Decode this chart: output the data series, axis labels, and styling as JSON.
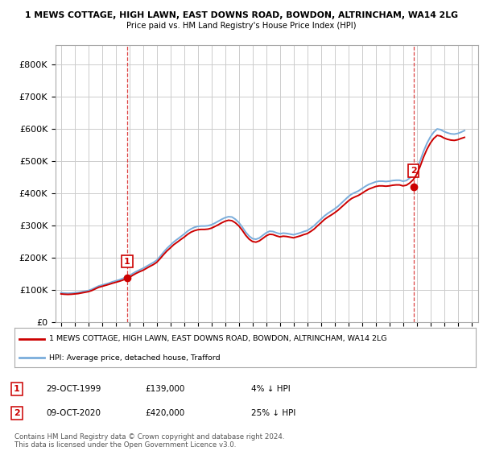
{
  "title1": "1 MEWS COTTAGE, HIGH LAWN, EAST DOWNS ROAD, BOWDON, ALTRINCHAM, WA14 2LG",
  "title2": "Price paid vs. HM Land Registry's House Price Index (HPI)",
  "yticks": [
    0,
    100000,
    200000,
    300000,
    400000,
    500000,
    600000,
    700000,
    800000
  ],
  "ytick_labels": [
    "£0",
    "£100K",
    "£200K",
    "£300K",
    "£400K",
    "£500K",
    "£600K",
    "£700K",
    "£800K"
  ],
  "ylim": [
    0,
    860000
  ],
  "xlim_left": 1994.6,
  "xlim_right": 2025.5,
  "sale1_date": 1999.83,
  "sale1_price": 139000,
  "sale2_date": 2020.77,
  "sale2_price": 420000,
  "legend_entry1": "1 MEWS COTTAGE, HIGH LAWN, EAST DOWNS ROAD, BOWDON, ALTRINCHAM, WA14 2LG",
  "legend_entry2": "HPI: Average price, detached house, Trafford",
  "footnote": "Contains HM Land Registry data © Crown copyright and database right 2024.\nThis data is licensed under the Open Government Licence v3.0.",
  "color_red": "#cc0000",
  "color_blue": "#7aaddb",
  "background": "#ffffff",
  "grid_color": "#cccccc",
  "hpi_data": {
    "dates": [
      1995.0,
      1995.25,
      1995.5,
      1995.75,
      1996.0,
      1996.25,
      1996.5,
      1996.75,
      1997.0,
      1997.25,
      1997.5,
      1997.75,
      1998.0,
      1998.25,
      1998.5,
      1998.75,
      1999.0,
      1999.25,
      1999.5,
      1999.75,
      2000.0,
      2000.25,
      2000.5,
      2000.75,
      2001.0,
      2001.25,
      2001.5,
      2001.75,
      2002.0,
      2002.25,
      2002.5,
      2002.75,
      2003.0,
      2003.25,
      2003.5,
      2003.75,
      2004.0,
      2004.25,
      2004.5,
      2004.75,
      2005.0,
      2005.25,
      2005.5,
      2005.75,
      2006.0,
      2006.25,
      2006.5,
      2006.75,
      2007.0,
      2007.25,
      2007.5,
      2007.75,
      2008.0,
      2008.25,
      2008.5,
      2008.75,
      2009.0,
      2009.25,
      2009.5,
      2009.75,
      2010.0,
      2010.25,
      2010.5,
      2010.75,
      2011.0,
      2011.25,
      2011.5,
      2011.75,
      2012.0,
      2012.25,
      2012.5,
      2012.75,
      2013.0,
      2013.25,
      2013.5,
      2013.75,
      2014.0,
      2014.25,
      2014.5,
      2014.75,
      2015.0,
      2015.25,
      2015.5,
      2015.75,
      2016.0,
      2016.25,
      2016.5,
      2016.75,
      2017.0,
      2017.25,
      2017.5,
      2017.75,
      2018.0,
      2018.25,
      2018.5,
      2018.75,
      2019.0,
      2019.25,
      2019.5,
      2019.75,
      2020.0,
      2020.25,
      2020.5,
      2020.75,
      2021.0,
      2021.25,
      2021.5,
      2021.75,
      2022.0,
      2022.25,
      2022.5,
      2022.75,
      2023.0,
      2023.25,
      2023.5,
      2023.75,
      2024.0,
      2024.25,
      2024.5
    ],
    "values": [
      92000,
      91000,
      90500,
      91000,
      92000,
      93000,
      95000,
      97000,
      99000,
      103000,
      108000,
      113000,
      116000,
      119000,
      122000,
      126000,
      129000,
      132000,
      136000,
      140000,
      145000,
      152000,
      158000,
      163000,
      168000,
      174000,
      180000,
      186000,
      193000,
      205000,
      218000,
      230000,
      240000,
      250000,
      258000,
      266000,
      274000,
      283000,
      290000,
      295000,
      298000,
      299000,
      299000,
      300000,
      303000,
      308000,
      314000,
      320000,
      325000,
      328000,
      327000,
      320000,
      310000,
      296000,
      280000,
      268000,
      260000,
      258000,
      262000,
      270000,
      278000,
      283000,
      282000,
      278000,
      275000,
      277000,
      276000,
      274000,
      272000,
      275000,
      278000,
      282000,
      285000,
      292000,
      300000,
      310000,
      320000,
      330000,
      338000,
      345000,
      352000,
      360000,
      370000,
      380000,
      390000,
      398000,
      403000,
      408000,
      415000,
      422000,
      428000,
      432000,
      436000,
      438000,
      438000,
      437000,
      438000,
      440000,
      441000,
      441000,
      438000,
      440000,
      448000,
      458000,
      475000,
      500000,
      530000,
      555000,
      575000,
      590000,
      600000,
      598000,
      592000,
      588000,
      585000,
      584000,
      586000,
      590000,
      595000
    ]
  },
  "price_paid_data": {
    "dates": [
      1995.0,
      1995.25,
      1995.5,
      1995.75,
      1996.0,
      1996.25,
      1996.5,
      1996.75,
      1997.0,
      1997.25,
      1997.5,
      1997.75,
      1998.0,
      1998.25,
      1998.5,
      1998.75,
      1999.0,
      1999.25,
      1999.5,
      1999.75,
      2000.0,
      2000.25,
      2000.5,
      2000.75,
      2001.0,
      2001.25,
      2001.5,
      2001.75,
      2002.0,
      2002.25,
      2002.5,
      2002.75,
      2003.0,
      2003.25,
      2003.5,
      2003.75,
      2004.0,
      2004.25,
      2004.5,
      2004.75,
      2005.0,
      2005.25,
      2005.5,
      2005.75,
      2006.0,
      2006.25,
      2006.5,
      2006.75,
      2007.0,
      2007.25,
      2007.5,
      2007.75,
      2008.0,
      2008.25,
      2008.5,
      2008.75,
      2009.0,
      2009.25,
      2009.5,
      2009.75,
      2010.0,
      2010.25,
      2010.5,
      2010.75,
      2011.0,
      2011.25,
      2011.5,
      2011.75,
      2012.0,
      2012.25,
      2012.5,
      2012.75,
      2013.0,
      2013.25,
      2013.5,
      2013.75,
      2014.0,
      2014.25,
      2014.5,
      2014.75,
      2015.0,
      2015.25,
      2015.5,
      2015.75,
      2016.0,
      2016.25,
      2016.5,
      2016.75,
      2017.0,
      2017.25,
      2017.5,
      2017.75,
      2018.0,
      2018.25,
      2018.5,
      2018.75,
      2019.0,
      2019.25,
      2019.5,
      2019.75,
      2020.0,
      2020.25,
      2020.5,
      2020.75,
      2021.0,
      2021.25,
      2021.5,
      2021.75,
      2022.0,
      2022.25,
      2022.5,
      2022.75,
      2023.0,
      2023.25,
      2023.5,
      2023.75,
      2024.0,
      2024.25,
      2024.5
    ],
    "values": [
      88500,
      87500,
      87000,
      87500,
      88500,
      89500,
      91500,
      93500,
      95500,
      99000,
      104000,
      109000,
      112000,
      115000,
      118000,
      121500,
      124500,
      127500,
      131000,
      135000,
      139800,
      146500,
      152500,
      157500,
      162000,
      168000,
      174000,
      179500,
      186500,
      198000,
      210500,
      222000,
      231500,
      241500,
      249000,
      257000,
      264500,
      273000,
      280000,
      284500,
      287500,
      288500,
      288500,
      289500,
      292500,
      297500,
      303000,
      309000,
      314000,
      317000,
      315500,
      309000,
      299500,
      286000,
      270500,
      258500,
      251000,
      249000,
      253000,
      260500,
      268500,
      273500,
      272500,
      268500,
      265500,
      267500,
      266500,
      264500,
      262500,
      265500,
      268500,
      272500,
      275500,
      282000,
      289500,
      299500,
      309000,
      319000,
      326500,
      333000,
      340000,
      348000,
      357500,
      367000,
      376500,
      384500,
      389500,
      394000,
      400500,
      407500,
      413500,
      417500,
      421500,
      423500,
      423500,
      422500,
      423500,
      425500,
      426500,
      426500,
      423500,
      425500,
      432500,
      442500,
      459000,
      483000,
      512000,
      536500,
      556000,
      570500,
      580000,
      578000,
      572000,
      568000,
      565500,
      564500,
      566500,
      570500,
      574000
    ]
  }
}
